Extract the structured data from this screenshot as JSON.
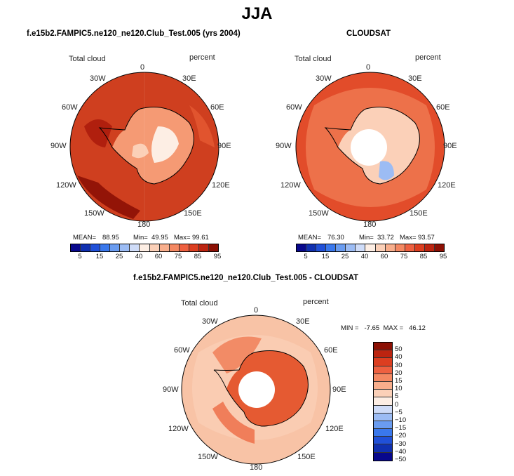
{
  "title": "JJA",
  "panels": {
    "model": {
      "title": "f.e15b2.FAMPIC5.ne120_ne120.Club_Test.005 (yrs 2004)",
      "variable": "Total cloud",
      "units": "percent",
      "mean_label": "MEAN=",
      "mean": "88.95",
      "min_label": "Min=",
      "min": "49.95",
      "max_label": "Max=",
      "max": "99.61"
    },
    "obs": {
      "title": "CLOUDSAT",
      "variable": "Total cloud",
      "units": "percent",
      "mean_label": "MEAN=",
      "mean": "76.30",
      "min_label": "Min=",
      "min": "33.72",
      "max_label": "Max=",
      "max": "93.57"
    },
    "diff": {
      "title": "f.e15b2.FAMPIC5.ne120_ne120.Club_Test.005 - CLOUDSAT",
      "variable": "Total cloud",
      "units": "percent",
      "minmax": "MIN =   -7.65  MAX =   46.12"
    }
  },
  "lon_labels": [
    "0",
    "30E",
    "60E",
    "90E",
    "120E",
    "150E",
    "180",
    "150W",
    "120W",
    "90W",
    "60W",
    "30W"
  ],
  "colorbar_abs": {
    "colors": [
      "#08088c",
      "#1030b0",
      "#2050d8",
      "#3a78ec",
      "#6a9cf0",
      "#9cbcf4",
      "#cfdcf8",
      "#fdeee4",
      "#fbd0b8",
      "#f8ae8c",
      "#f48862",
      "#ee6040",
      "#dc3e20",
      "#bc2410",
      "#8c1004"
    ],
    "ticks": [
      "5",
      "15",
      "25",
      "40",
      "60",
      "75",
      "85",
      "95"
    ]
  },
  "colorbar_diff": {
    "colors": [
      "#8c1004",
      "#bc2410",
      "#dc3e20",
      "#ee6040",
      "#f48862",
      "#f8ae8c",
      "#fbd0b8",
      "#fdeee4",
      "#cfdcf8",
      "#9cbcf4",
      "#6a9cf0",
      "#3a78ec",
      "#2050d8",
      "#1030b0",
      "#08088c"
    ],
    "ticks": [
      "50",
      "40",
      "30",
      "20",
      "15",
      "10",
      "5",
      "0",
      "−5",
      "−10",
      "−15",
      "−20",
      "−30",
      "−40",
      "−50"
    ]
  }
}
